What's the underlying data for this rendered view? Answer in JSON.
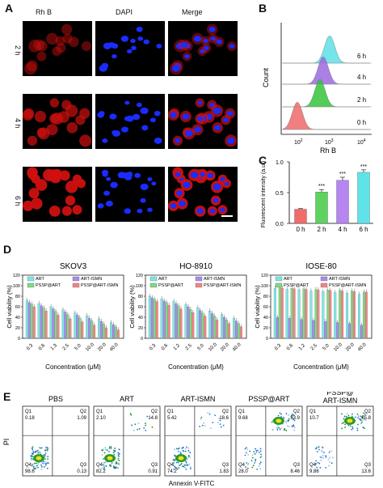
{
  "panel_letters": {
    "a": "A",
    "b": "B",
    "c": "C",
    "d": "D",
    "e": "E"
  },
  "panel_a": {
    "col_labels": [
      "Rh B",
      "DAPI",
      "Merge"
    ],
    "row_labels": [
      "2 h",
      "4 h",
      "6 h"
    ],
    "colors": {
      "rhb": "#d01010",
      "dapi": "#1a2cff",
      "bg": "#000000"
    }
  },
  "panel_b": {
    "ylabel": "Count",
    "xlabel": "Rh B",
    "x_ticks": [
      "10",
      "10",
      "10"
    ],
    "x_tick_exp": [
      "2",
      "3",
      "4"
    ],
    "row_labels": [
      "6 h",
      "4 h",
      "2 h",
      "0 h"
    ],
    "colors": [
      "#5ee0e8",
      "#9c6be0",
      "#36c43c",
      "#ee6a6a"
    ]
  },
  "panel_e": {
    "titles": [
      "PBS",
      "ART",
      "ART-ISMN",
      "PSSP@ART",
      "PSSP@\nART-ISMN"
    ],
    "title_line1": [
      "PBS",
      "ART",
      "ART-ISMN",
      "PSSP@ART",
      "PSSP@"
    ],
    "title_line2": [
      "",
      "",
      "",
      "",
      "ART-ISMN"
    ],
    "quadrants": [
      {
        "q1": "0.18",
        "q2": "1.09",
        "q3": "0.13",
        "q4": "98.6"
      },
      {
        "q1": "2.10",
        "q2": "14.8",
        "q3": "0.91",
        "q4": "82.2"
      },
      {
        "q1": "5.42",
        "q2": "18.6",
        "q3": "1.83",
        "q4": "74.2"
      },
      {
        "q1": "9.68",
        "q2": "53.9",
        "q3": "8.46",
        "q4": "28.0"
      },
      {
        "q1": "10.7",
        "q2": "65.8",
        "q3": "13.6",
        "q4": "9.86"
      }
    ],
    "q_labels": {
      "q1": "Q1",
      "q2": "Q2",
      "q3": "Q3",
      "q4": "Q4"
    },
    "ylabel": "PI",
    "xlabel": "Annexin V-FITC"
  },
  "chart_data": [
    {
      "type": "bar",
      "categories": [
        "0 h",
        "2 h",
        "4 h",
        "6 h"
      ],
      "values": [
        0.23,
        0.51,
        0.7,
        0.83
      ],
      "errors": [
        0.01,
        0.04,
        0.05,
        0.04
      ],
      "significance": [
        "",
        "***",
        "***",
        "***"
      ],
      "colors": [
        "#f26b6b",
        "#5fd35f",
        "#b585f0",
        "#5fe3e8"
      ],
      "ylabel": "Fluorescent intensity (a.u.)",
      "xlabel": "",
      "ylim": [
        0,
        1.0
      ],
      "y_ticks": [
        "0.0",
        "0.5",
        "1.0"
      ]
    },
    {
      "type": "bar",
      "title": "SKOV3",
      "categories": [
        "0.3",
        "0.6",
        "1.3",
        "2.5",
        "5.0",
        "10.0",
        "20.0",
        "40.0"
      ],
      "series": [
        {
          "name": "ART",
          "values": [
            72,
            66,
            60,
            54,
            48,
            43,
            37,
            30
          ]
        },
        {
          "name": "ART-ISMN",
          "values": [
            68,
            62,
            56,
            50,
            44,
            38,
            32,
            26
          ]
        },
        {
          "name": "PSSP@ART",
          "values": [
            65,
            58,
            51,
            45,
            39,
            33,
            27,
            22
          ]
        },
        {
          "name": "PSSP@ART-ISMN",
          "values": [
            60,
            52,
            44,
            37,
            31,
            25,
            20,
            16
          ]
        }
      ],
      "ylabel": "Cell viability (%)",
      "xlabel": "Concentration (μM)",
      "ylim": [
        0,
        120
      ],
      "y_ticks": [
        "0",
        "20",
        "40",
        "60",
        "80",
        "100",
        "120"
      ]
    },
    {
      "type": "bar",
      "title": "HO-8910",
      "categories": [
        "0.3",
        "0.6",
        "1.2",
        "2.5",
        "5.0",
        "10.0",
        "20.0",
        "40.0"
      ],
      "series": [
        {
          "name": "ART",
          "values": [
            80,
            75,
            70,
            64,
            58,
            52,
            45,
            38
          ]
        },
        {
          "name": "ART-ISMN",
          "values": [
            77,
            71,
            66,
            60,
            53,
            47,
            40,
            33
          ]
        },
        {
          "name": "PSSP@ART",
          "values": [
            74,
            68,
            62,
            55,
            48,
            42,
            35,
            28
          ]
        },
        {
          "name": "PSSP@ART-ISMN",
          "values": [
            70,
            63,
            56,
            49,
            42,
            35,
            28,
            22
          ]
        }
      ],
      "ylabel": "Cell viability (%)",
      "xlabel": "Concentration (μM)",
      "ylim": [
        0,
        120
      ],
      "y_ticks": [
        "0",
        "20",
        "40",
        "60",
        "80",
        "100",
        "120"
      ]
    },
    {
      "type": "bar",
      "title": "IOSE-80",
      "categories": [
        "0.3",
        "0.6",
        "1.2",
        "2.5",
        "5.0",
        "10.0",
        "20.0",
        "40.0"
      ],
      "series": [
        {
          "name": "ART",
          "values": [
            95,
            93,
            92,
            90,
            89,
            87,
            86,
            84
          ]
        },
        {
          "name": "ART-ISMN",
          "values": [
            40,
            38,
            36,
            34,
            32,
            30,
            28,
            25
          ]
        },
        {
          "name": "PSSP@ART",
          "values": [
            96,
            95,
            94,
            93,
            92,
            91,
            90,
            88
          ]
        },
        {
          "name": "PSSP@ART-ISMN",
          "values": [
            95,
            94,
            93,
            92,
            91,
            90,
            89,
            88
          ]
        }
      ],
      "ylabel": "Cell viability (%)",
      "xlabel": "Concentration (μM)",
      "ylim": [
        0,
        120
      ],
      "y_ticks": [
        "0",
        "20",
        "40",
        "60",
        "80",
        "100",
        "120"
      ]
    }
  ],
  "bar_colors": [
    "#7ee6e6",
    "#a98af0",
    "#7fdb7f",
    "#f28484"
  ]
}
